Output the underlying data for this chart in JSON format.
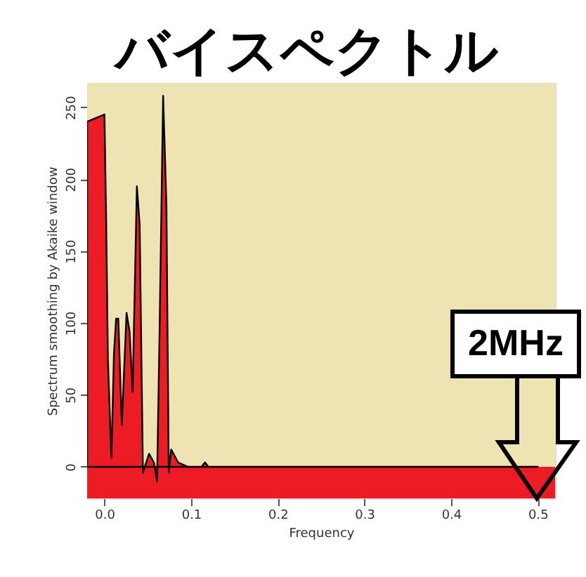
{
  "chart_data": {
    "type": "area",
    "title": "バイスペクトル",
    "xlabel": "Frequency",
    "ylabel": "Spectrum smoothing by Akaike window",
    "x": [
      -0.02,
      0.0,
      0.002,
      0.004,
      0.008,
      0.011,
      0.0135,
      0.016,
      0.02,
      0.0255,
      0.029,
      0.0325,
      0.0374,
      0.0406,
      0.0444,
      0.0515,
      0.057,
      0.0607,
      0.0634,
      0.0677,
      0.0715,
      0.0742,
      0.077,
      0.085,
      0.096,
      0.112,
      0.116,
      0.12,
      0.2,
      0.3,
      0.4,
      0.5
    ],
    "series": [
      {
        "color": "#ed1c24",
        "values": [
          240,
          245,
          170,
          74,
          6,
          79,
          103,
          103,
          29,
          107,
          94,
          52,
          195,
          169,
          -4,
          9,
          3,
          -10,
          87,
          258,
          182,
          -4,
          12,
          3,
          0,
          0,
          3,
          0,
          0,
          0,
          0,
          0
        ]
      }
    ],
    "xlim": [
      -0.02,
      0.52
    ],
    "ylim": [
      -22,
      267
    ],
    "xticks": [
      {
        "value": 0,
        "label": "0.0"
      },
      {
        "value": 0.1,
        "label": "0.1"
      },
      {
        "value": 0.2,
        "label": "0.2"
      },
      {
        "value": 0.3,
        "label": "0.3"
      },
      {
        "value": 0.4,
        "label": "0.4"
      },
      {
        "value": 0.5,
        "label": "0.5"
      }
    ],
    "yticks": [
      0,
      50,
      100,
      150,
      200,
      250
    ],
    "bands": [
      {
        "axis": "y",
        "from": -22,
        "to": 0,
        "color": "#ed1c24"
      }
    ],
    "annotations": [
      "2MHz"
    ]
  }
}
